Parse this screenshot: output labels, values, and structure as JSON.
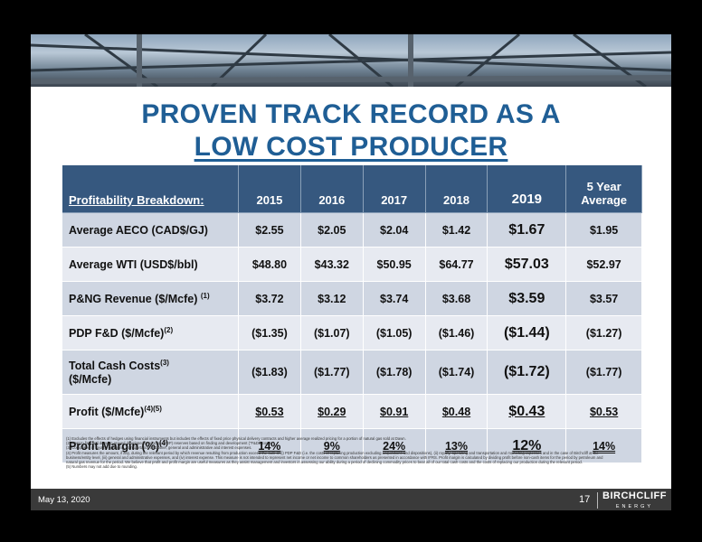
{
  "title": {
    "line1": "PROVEN TRACK RECORD AS A",
    "line2": "LOW COST PRODUCER"
  },
  "table": {
    "header": {
      "label": "Profitability Breakdown:",
      "y2015": "2015",
      "y2016": "2016",
      "y2017": "2017",
      "y2018": "2018",
      "y2019": "2019",
      "avg_line1": "5 Year",
      "avg_line2": "Average"
    },
    "rows": [
      {
        "label": "Average AECO (CAD$/GJ)",
        "sup": "",
        "v2015": "$2.55",
        "v2016": "$2.05",
        "v2017": "$2.04",
        "v2018": "$1.42",
        "v2019": "$1.67",
        "avg": "$1.95"
      },
      {
        "label": "Average WTI (USD$/bbl)",
        "sup": "",
        "v2015": "$48.80",
        "v2016": "$43.32",
        "v2017": "$50.95",
        "v2018": "$64.77",
        "v2019": "$57.03",
        "avg": "$52.97"
      },
      {
        "label": "P&NG Revenue ($/Mcfe) ",
        "sup": "(1)",
        "v2015": "$3.72",
        "v2016": "$3.12",
        "v2017": "$3.74",
        "v2018": "$3.68",
        "v2019": "$3.59",
        "avg": "$3.57"
      },
      {
        "label": "PDP F&D ($/Mcfe)",
        "sup": "(2)",
        "v2015": "($1.35)",
        "v2016": "($1.07)",
        "v2017": "($1.05)",
        "v2018": "($1.46)",
        "v2019": "($1.44)",
        "avg": "($1.27)"
      },
      {
        "label": "Total Cash Costs",
        "sup": "(3)",
        "label2": "($/Mcfe)",
        "v2015": "($1.83)",
        "v2016": "($1.77)",
        "v2017": "($1.78)",
        "v2018": "($1.74)",
        "v2019": "($1.72)",
        "avg": "($1.77)"
      },
      {
        "label": "Profit ($/Mcfe)",
        "sup": "(4)(5)",
        "v2015": "$0.53",
        "v2016": "$0.29",
        "v2017": "$0.91",
        "v2018": "$0.48",
        "v2019": "$0.43",
        "avg": "$0.53"
      },
      {
        "label": "Profit Margin (%)",
        "sup": "(4)",
        "v2015": "14%",
        "v2016": "9%",
        "v2017": "24%",
        "v2018": "13%",
        "v2019": "12%",
        "avg": "14%"
      }
    ]
  },
  "footnotes": [
    "(1) Excludes the effects of hedges using financial instruments but includes the effects of fixed price physical delivery contracts and higher average realized pricing for a portion of natural gas sold at Dawn.",
    "(2) Cost to find and develop proved developed producing (PDP) reserves based on finding and development (\"F&D\") costs.",
    "(3) Comprised of royalty, operating, transportation and other, general and administrative and interest expenses.",
    "(4) Profit measures the amount, if any, during the relevant period by which revenue resulting from production exceed the sum of (i) PDP F&D (i.e. the costs of replacing production excluding acquisitions and dispositions), (ii) royalty, operating and transportation and marketing expenses and in the case of Birchcliff at the",
    "business/entity level, (iii) general and administrative expenses, and (iv) interest expense. This measure is not intended to represent net income or net income to common shareholders as presented in accordance with IFRS. Profit margin is calculated by dividing profit before non-cash items for the period by petroleum and",
    "natural gas revenue for the period. We believe that profit and profit margin are useful measures as they assist management and investors in assessing our ability during a period of declining commodity prices to bear all of our total cash costs and the costs of replacing our production during the relevant period.",
    "(5) Numbers may not add due to rounding."
  ],
  "footer": {
    "date": "May 13, 2020",
    "page": "17",
    "logo_line1": "BIRCHCLIFF",
    "logo_line2": "ENERGY"
  }
}
